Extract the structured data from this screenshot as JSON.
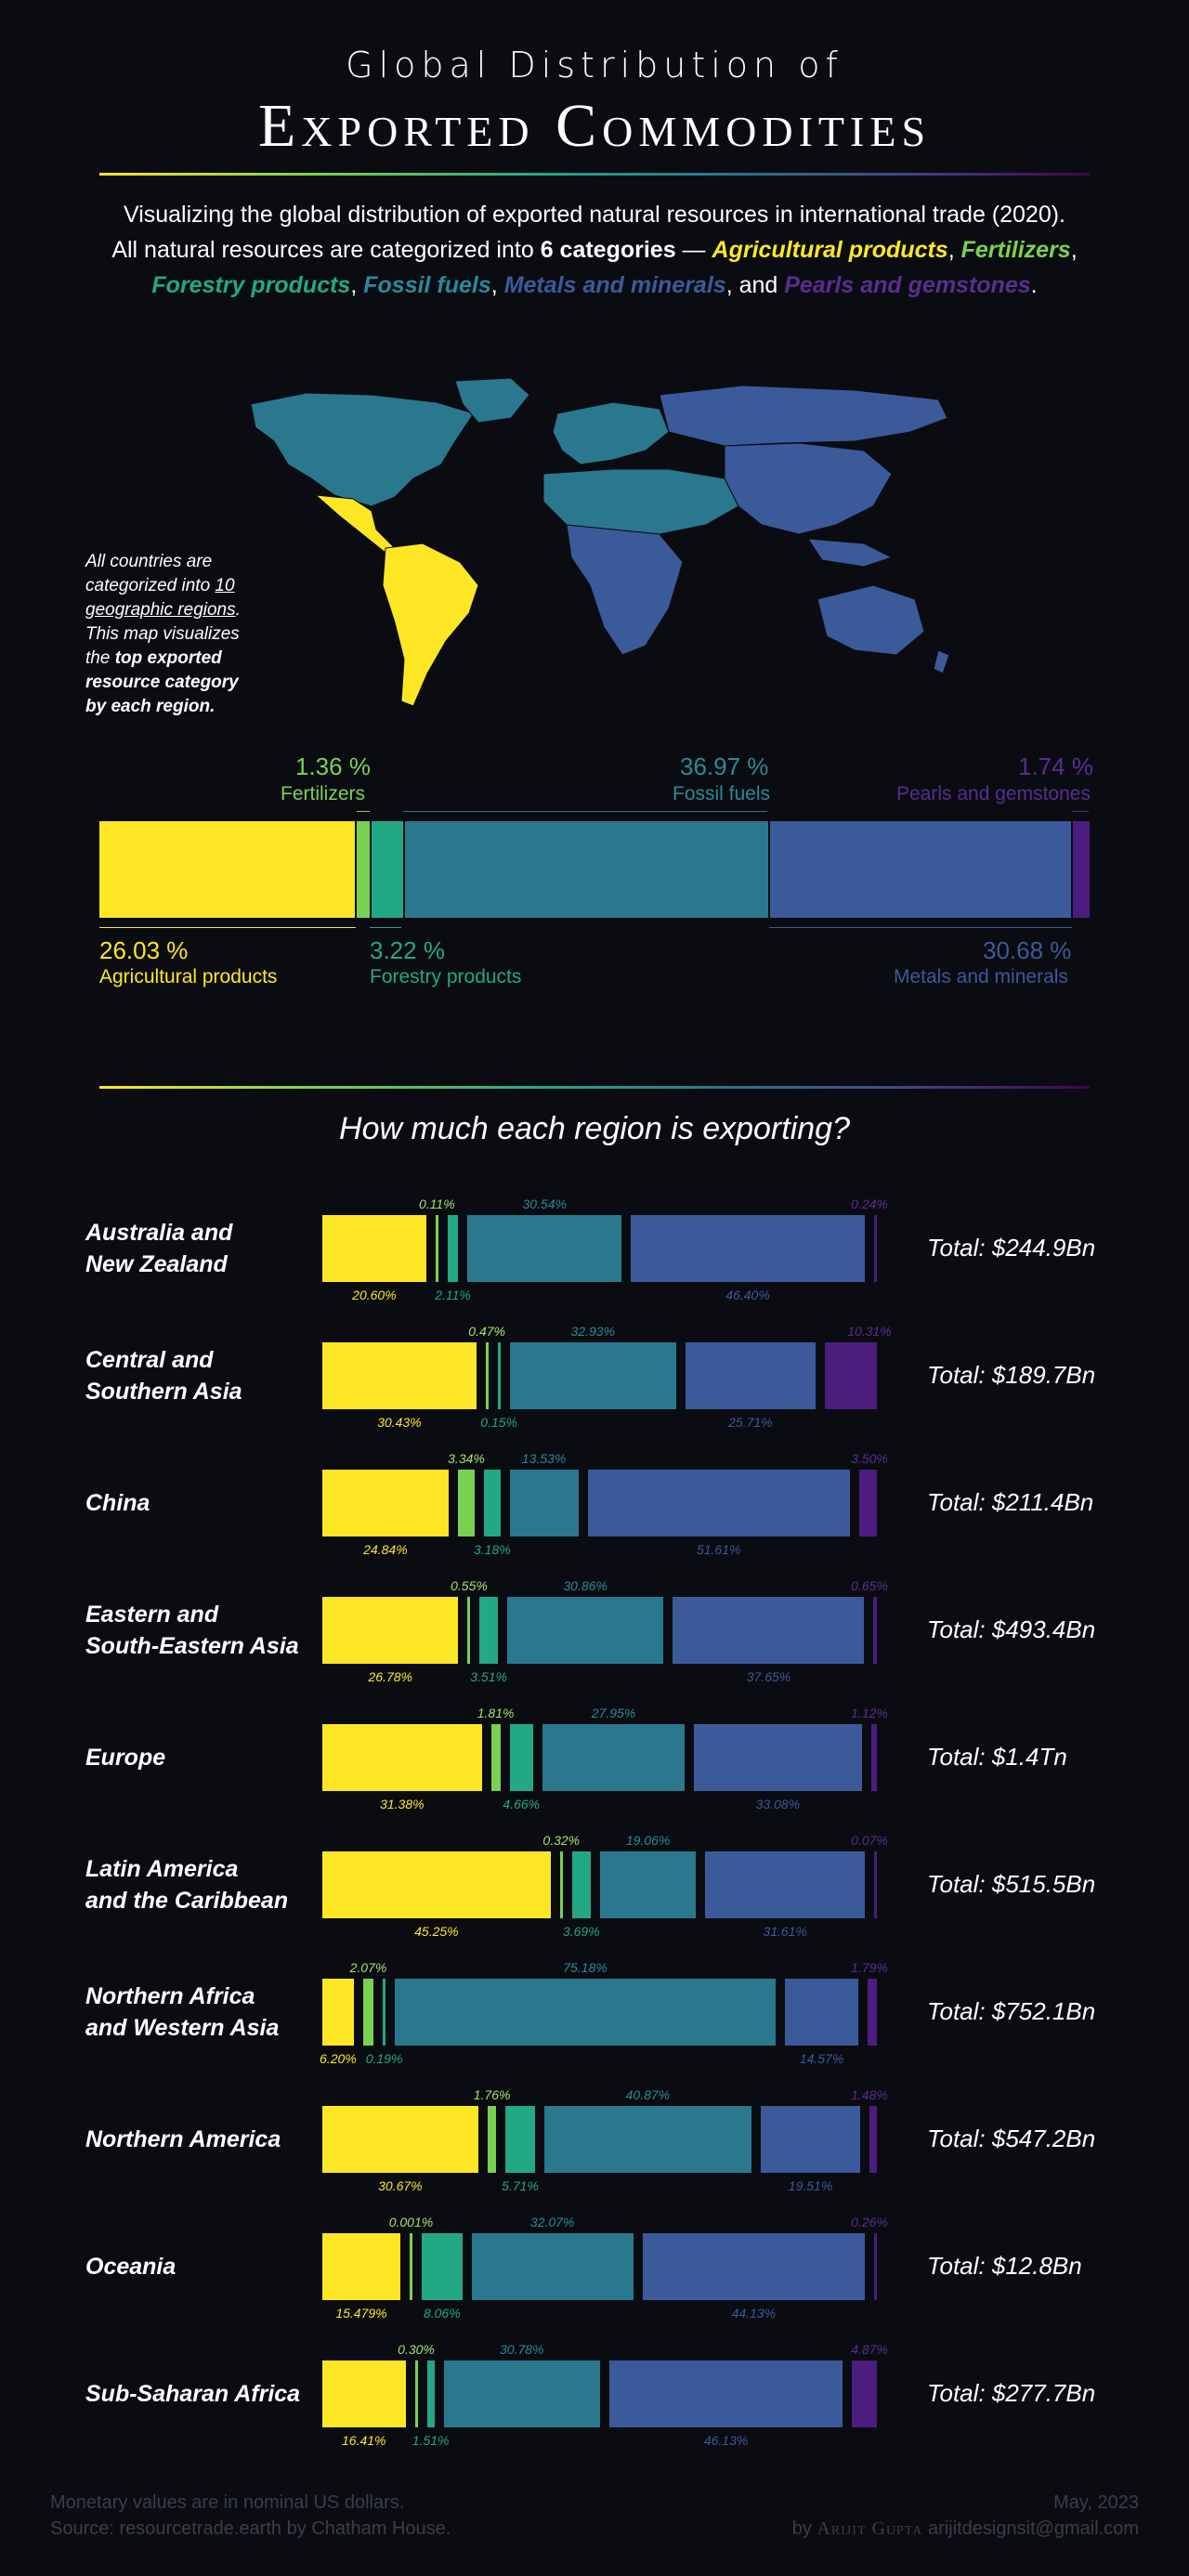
{
  "header": {
    "title_line1": "Global Distribution of",
    "title_line2": "Exported Commodities"
  },
  "intro": {
    "line1": "Visualizing the global distribution of exported natural resources in international trade (2020).",
    "line2_pre": "All natural resources are categorized into ",
    "line2_bold": "6 categories",
    "line2_dash": " — ",
    "sep1": ", ",
    "sep2": ", ",
    "sep3": ", ",
    "sep4": ", ",
    "and": ", and ",
    "end": "."
  },
  "categories": [
    {
      "key": "agri",
      "name": "Agricultural products",
      "color": "#fde725"
    },
    {
      "key": "fert",
      "name": "Fertilizers",
      "color": "#7ad151"
    },
    {
      "key": "fore",
      "name": "Forestry products",
      "color": "#22a884"
    },
    {
      "key": "foss",
      "name": "Fossil fuels",
      "color": "#2a788e"
    },
    {
      "key": "meta",
      "name": "Metals and minerals",
      "color": "#3b5a9a"
    },
    {
      "key": "pear",
      "name": "Pearls and gemstones",
      "color": "#4a1d7e"
    }
  ],
  "map_note": {
    "l1": "All countries are",
    "l2a": "categorized into ",
    "l2b": "10",
    "l3": "geographic regions",
    "l3b": ".",
    "l4": "This map visualizes",
    "l5a": "the ",
    "l5b": "top exported",
    "l6": "resource category",
    "l7": "by each region."
  },
  "map_colors": {
    "ocean": "#0b0c12",
    "americas_latam": "#fde725",
    "north": "#2a788e",
    "rest": "#3b5a9a",
    "border": "#111"
  },
  "global_labels": {
    "agri_val": "26.03 %",
    "agri_lab": "Agricultural products",
    "fert_val": "1.36 %",
    "fert_lab": "Fertilizers",
    "fore_val": "3.22 %",
    "fore_lab": "Forestry products",
    "foss_val": "36.97 %",
    "foss_lab": "Fossil fuels",
    "meta_val": "30.68 %",
    "meta_lab": "Metals and minerals",
    "pear_val": "1.74 %",
    "pear_lab": "Pearls and gemstones"
  },
  "chart_data": [
    {
      "type": "bar",
      "title": "",
      "categories": [
        "Agricultural products",
        "Fertilizers",
        "Forestry products",
        "Fossil fuels",
        "Metals and minerals",
        "Pearls and gemstones"
      ],
      "values": [
        26.03,
        1.36,
        3.22,
        36.97,
        30.68,
        1.74
      ]
    },
    {
      "type": "bar",
      "title": "How much each region is exporting?",
      "categories": [
        "Agricultural products",
        "Fertilizers",
        "Forestry products",
        "Fossil fuels",
        "Metals and minerals",
        "Pearls and gemstones"
      ],
      "series": [
        {
          "name": "Australia and New Zealand",
          "total": "Total: $244.9Bn",
          "values": [
            20.6,
            0.11,
            2.11,
            30.54,
            46.4,
            0.24
          ],
          "labels": [
            "20.60%",
            "0.11%",
            "2.11%",
            "30.54%",
            "46.40%",
            "0.24%"
          ]
        },
        {
          "name": "Central and Southern Asia",
          "total": "Total: $189.7Bn",
          "values": [
            30.43,
            0.47,
            0.15,
            32.93,
            25.71,
            10.31
          ],
          "labels": [
            "30.43%",
            "0.47%",
            "0.15%",
            "32.93%",
            "25.71%",
            "10.31%"
          ]
        },
        {
          "name": "China",
          "total": "Total: $211.4Bn",
          "values": [
            24.84,
            3.34,
            3.18,
            13.53,
            51.61,
            3.5
          ],
          "labels": [
            "24.84%",
            "3.34%",
            "3.18%",
            "13.53%",
            "51.61%",
            "3.50%"
          ]
        },
        {
          "name": "Eastern and South-Eastern Asia",
          "total": "Total: $493.4Bn",
          "values": [
            26.78,
            0.55,
            3.51,
            30.86,
            37.65,
            0.65
          ],
          "labels": [
            "26.78%",
            "0.55%",
            "3.51%",
            "30.86%",
            "37.65%",
            "0.65%"
          ]
        },
        {
          "name": "Europe",
          "total": "Total: $1.4Tn",
          "values": [
            31.38,
            1.81,
            4.66,
            27.95,
            33.08,
            1.12
          ],
          "labels": [
            "31.38%",
            "1.81%",
            "4.66%",
            "27.95%",
            "33.08%",
            "1.12%"
          ]
        },
        {
          "name": "Latin America and the Caribbean",
          "total": "Total: $515.5Bn",
          "values": [
            45.25,
            0.32,
            3.69,
            19.06,
            31.61,
            0.07
          ],
          "labels": [
            "45.25%",
            "0.32%",
            "3.69%",
            "19.06%",
            "31.61%",
            "0.07%"
          ]
        },
        {
          "name": "Northern Africa and Western Asia",
          "total": "Total: $752.1Bn",
          "values": [
            6.2,
            2.07,
            0.19,
            75.18,
            14.57,
            1.79
          ],
          "labels": [
            "6.20%",
            "2.07%",
            "0.19%",
            "75.18%",
            "14.57%",
            "1.79%"
          ]
        },
        {
          "name": "Northern America",
          "total": "Total: $547.2Bn",
          "values": [
            30.67,
            1.76,
            5.71,
            40.87,
            19.51,
            1.48
          ],
          "labels": [
            "30.67%",
            "1.76%",
            "5.71%",
            "40.87%",
            "19.51%",
            "1.48%"
          ]
        },
        {
          "name": "Oceania",
          "total": "Total: $12.8Bn",
          "values": [
            15.479,
            0.001,
            8.06,
            32.07,
            44.13,
            0.26
          ],
          "labels": [
            "15.479%",
            "0.001%",
            "8.06%",
            "32.07%",
            "44.13%",
            "0.26%"
          ]
        },
        {
          "name": "Sub-Saharan Africa",
          "total": "Total: $277.7Bn",
          "values": [
            16.41,
            0.3,
            1.51,
            30.78,
            46.13,
            4.87
          ],
          "labels": [
            "16.41%",
            "0.30%",
            "1.51%",
            "30.78%",
            "46.13%",
            "4.87%"
          ]
        }
      ]
    }
  ],
  "region_names": [
    [
      "Australia and",
      "New Zealand"
    ],
    [
      "Central and",
      "Southern Asia"
    ],
    [
      "China",
      ""
    ],
    [
      "Eastern and",
      "South-Eastern Asia"
    ],
    [
      "Europe",
      ""
    ],
    [
      "Latin America",
      "and the Caribbean"
    ],
    [
      "Northern Africa",
      "and Western Asia"
    ],
    [
      "Northern America",
      ""
    ],
    [
      "Oceania",
      ""
    ],
    [
      "Sub-Saharan Africa",
      ""
    ]
  ],
  "footer": {
    "l1": "Monetary values are in nominal US dollars.",
    "l2": "Source: resourcetrade.earth by Chatham House.",
    "date": "May, 2023",
    "by": "by",
    "author": "Arijit Gupta",
    "email": "arijitdesignsit@gmail.com"
  }
}
